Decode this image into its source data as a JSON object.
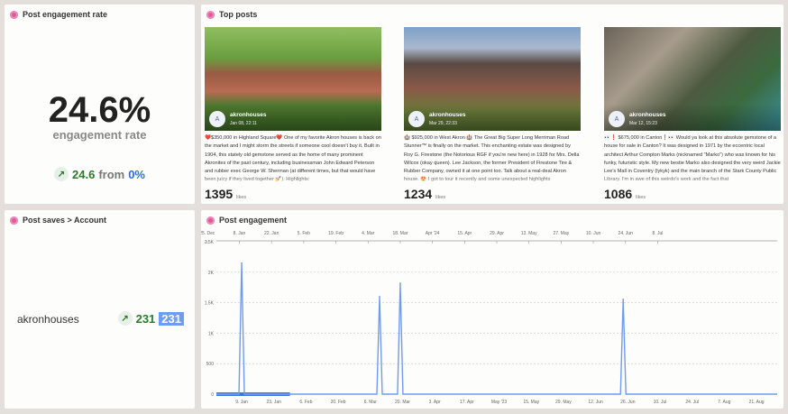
{
  "engagement_rate": {
    "title": "Post engagement rate",
    "value": "24.6%",
    "label": "engagement rate",
    "change": "24.6",
    "from_label": "from",
    "from_value": "0%",
    "trend_icon": "arrow-up-right-icon"
  },
  "top_posts": {
    "title": "Top posts",
    "likes_label": "likes",
    "posts": [
      {
        "avatar": "A",
        "user": "akronhouses",
        "date": "Jan 08, 22:11",
        "caption": "❤️$350,000 in Highland Square❤️ One of my favorite Akron houses is back on the market and I might storm the streets if someone cool doesn't buy it. Built in 1904, this stately old gemstone served as the home of many prominent Akronites of the past century, including businessman John Edward Peterson and rubber exec George W. Sherman (at different times, but that would have been juicy if they lived together 💅). Highlights:",
        "likes": "1395"
      },
      {
        "avatar": "A",
        "user": "akronhouses",
        "date": "Mar 29, 22:33",
        "caption": "🏰 $925,000 in West Akron 🏰 The Great Big Super Long Merriman Road Stunner™ is finally on the market. This enchanting estate was designed by Roy G. Firestone (the Notorious RGF if you're new here) in 1928 for Mrs. Della Wilcox (okay queen). Lee Jackson, the former President of Firestone Tire & Rubber Company, owned it at one point too. Talk about a real-deal Akron house. 😍 I got to tour it recently and some unexpected highlights",
        "likes": "1234"
      },
      {
        "avatar": "A",
        "user": "akronhouses",
        "date": "Mar 12, 15:23",
        "caption": "👀❗ $675,000 in Canton❗👀 Would ya look at this absolute gemstone of a house for sale in Canton? It was designed in 1971 by the eccentric local architect Arthur Compton Marks (nicknamed \"Marko\") who was known for his funky, futuristic style. My new bestie Marko also designed the very weird Jackie Lee's Mall in Coventry (lykyk) and the main branch of the Stark County Public Library. I'm in awe of this weirdo's work and the fact that",
        "likes": "1086"
      }
    ]
  },
  "post_saves": {
    "title": "Post saves > Account",
    "account": "akronhouses",
    "change": "231",
    "value": "231",
    "trend_icon": "arrow-up-right-icon"
  },
  "post_engagement": {
    "title": "Post engagement"
  },
  "chart_data": {
    "type": "line",
    "title": "Post engagement",
    "ylim": [
      0,
      2500
    ],
    "y_ticks": [
      "0",
      "500",
      "1K",
      "1.5K",
      "2K",
      "2.5K"
    ],
    "y_tick_values": [
      0,
      500,
      1000,
      1500,
      2000,
      2500
    ],
    "grid": true,
    "x_range": [
      "2022-12-29",
      "2023-08-30"
    ],
    "x_ticks_bottom": [
      "9. Jan",
      "23. Jan",
      "6. Feb",
      "20. Feb",
      "6. Mar",
      "20. Mar",
      "3. Apr",
      "17. Apr",
      "May '23",
      "15. May",
      "29. May",
      "12. Jun",
      "26. Jun",
      "10. Jul",
      "24. Jul",
      "7. Aug",
      "21. Aug"
    ],
    "x_ticks_top": [
      "27. Nov",
      "11. Dec",
      "25. Dec",
      "8. Jan",
      "22. Jan",
      "5. Feb",
      "19. Feb",
      "4. Mar",
      "18. Mar",
      "Apr '24",
      "15. Apr",
      "29. Apr",
      "13. May",
      "27. May",
      "10. Jun",
      "24. Jun",
      "8. Jul"
    ],
    "series": [
      {
        "color": "#6e9cf0",
        "points": [
          {
            "date": "2023-01-09",
            "value": 2150
          },
          {
            "date": "2023-03-10",
            "value": 1600
          },
          {
            "date": "2023-03-19",
            "value": 1820
          },
          {
            "date": "2023-06-24",
            "value": 1560
          }
        ]
      }
    ],
    "highlight_range": [
      "2022-12-29",
      "2023-01-30"
    ]
  },
  "colors": {
    "background": "#e4dfdb",
    "accent": "#e05a9a",
    "line": "#6e9cf0",
    "positive": "#2a7a2a",
    "link": "#2a6fe0"
  }
}
